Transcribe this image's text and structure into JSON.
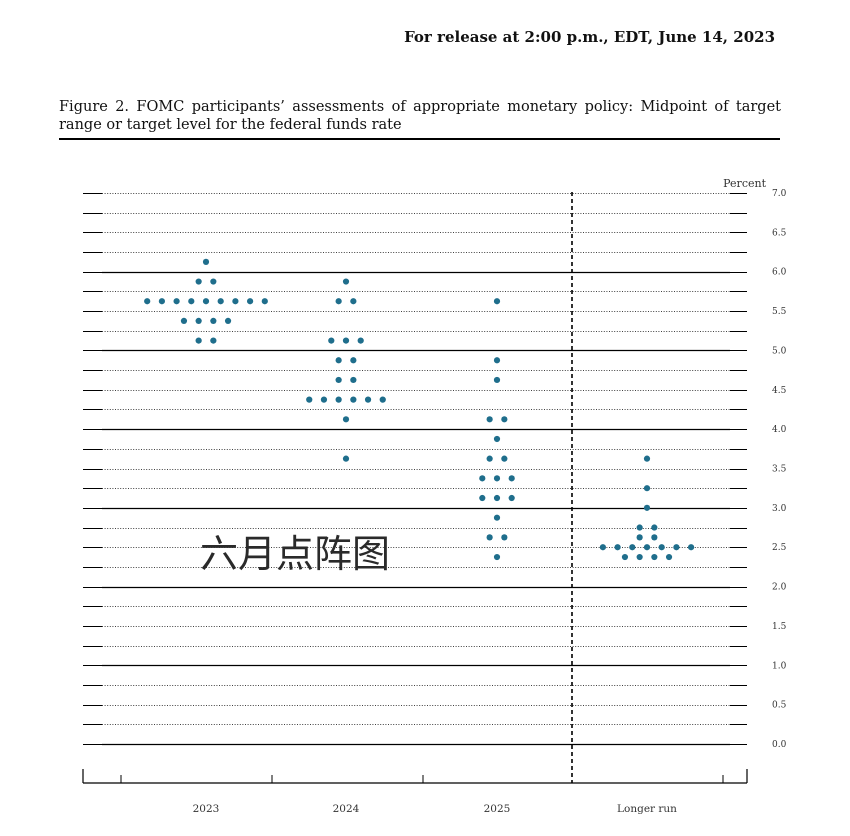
{
  "header": {
    "release": "For release at 2:00 p.m., EDT, June 14, 2023"
  },
  "figure": {
    "title": "Figure 2.  FOMC participants’ assessments of appropriate monetary policy: Midpoint of target range or target level for the federal funds rate"
  },
  "watermark": "六月点阵图",
  "colors": {
    "dot": "#1f6e8c",
    "axis": "#000000",
    "text": "#111111"
  },
  "chart_data": {
    "type": "scatter",
    "subtype": "dot plot",
    "ylabel": "Percent",
    "ylim": [
      0,
      7
    ],
    "ytick_step": 0.25,
    "ytick_labels": [
      "0.0",
      "0.5",
      "1.0",
      "1.5",
      "2.0",
      "2.5",
      "3.0",
      "3.5",
      "4.0",
      "4.5",
      "5.0",
      "5.5",
      "6.0",
      "6.5",
      "7.0"
    ],
    "categories": [
      "2023",
      "2024",
      "2025",
      "Longer run"
    ],
    "dots": [
      {
        "category": "2023",
        "levels": [
          {
            "y": 6.125,
            "count": 1
          },
          {
            "y": 5.875,
            "count": 2
          },
          {
            "y": 5.625,
            "count": 9
          },
          {
            "y": 5.375,
            "count": 4
          },
          {
            "y": 5.125,
            "count": 2
          }
        ]
      },
      {
        "category": "2024",
        "levels": [
          {
            "y": 5.875,
            "count": 1
          },
          {
            "y": 5.625,
            "count": 2
          },
          {
            "y": 5.125,
            "count": 3
          },
          {
            "y": 4.875,
            "count": 2
          },
          {
            "y": 4.625,
            "count": 2
          },
          {
            "y": 4.375,
            "count": 6
          },
          {
            "y": 4.125,
            "count": 1
          },
          {
            "y": 3.625,
            "count": 1
          }
        ]
      },
      {
        "category": "2025",
        "levels": [
          {
            "y": 5.625,
            "count": 1
          },
          {
            "y": 4.875,
            "count": 1
          },
          {
            "y": 4.625,
            "count": 1
          },
          {
            "y": 4.125,
            "count": 2
          },
          {
            "y": 3.875,
            "count": 1
          },
          {
            "y": 3.625,
            "count": 2
          },
          {
            "y": 3.375,
            "count": 3
          },
          {
            "y": 3.125,
            "count": 3
          },
          {
            "y": 2.875,
            "count": 1
          },
          {
            "y": 2.625,
            "count": 2
          },
          {
            "y": 2.375,
            "count": 1
          }
        ]
      },
      {
        "category": "Longer run",
        "levels": [
          {
            "y": 3.625,
            "count": 1
          },
          {
            "y": 3.25,
            "count": 1
          },
          {
            "y": 3.0,
            "count": 1
          },
          {
            "y": 2.75,
            "count": 2
          },
          {
            "y": 2.625,
            "count": 2
          },
          {
            "y": 2.5,
            "count": 7
          },
          {
            "y": 2.375,
            "count": 4
          }
        ]
      }
    ],
    "legend": "none",
    "grid": true
  }
}
